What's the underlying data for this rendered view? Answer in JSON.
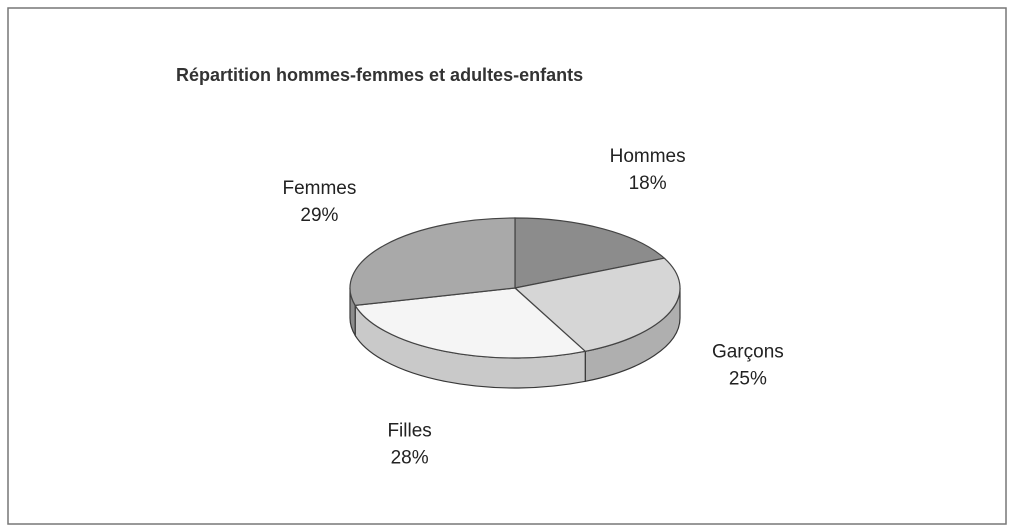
{
  "chart_data": {
    "type": "pie",
    "title": "Répartition hommes-femmes et adultes-enfants",
    "categories": [
      "Hommes",
      "Garçons",
      "Filles",
      "Femmes"
    ],
    "values": [
      18,
      25,
      28,
      29
    ],
    "value_labels": [
      "18%",
      "25%",
      "28%",
      "29%"
    ],
    "colors": [
      "#8c8c8c",
      "#d6d6d6",
      "#f5f5f5",
      "#a9a9a9"
    ]
  }
}
